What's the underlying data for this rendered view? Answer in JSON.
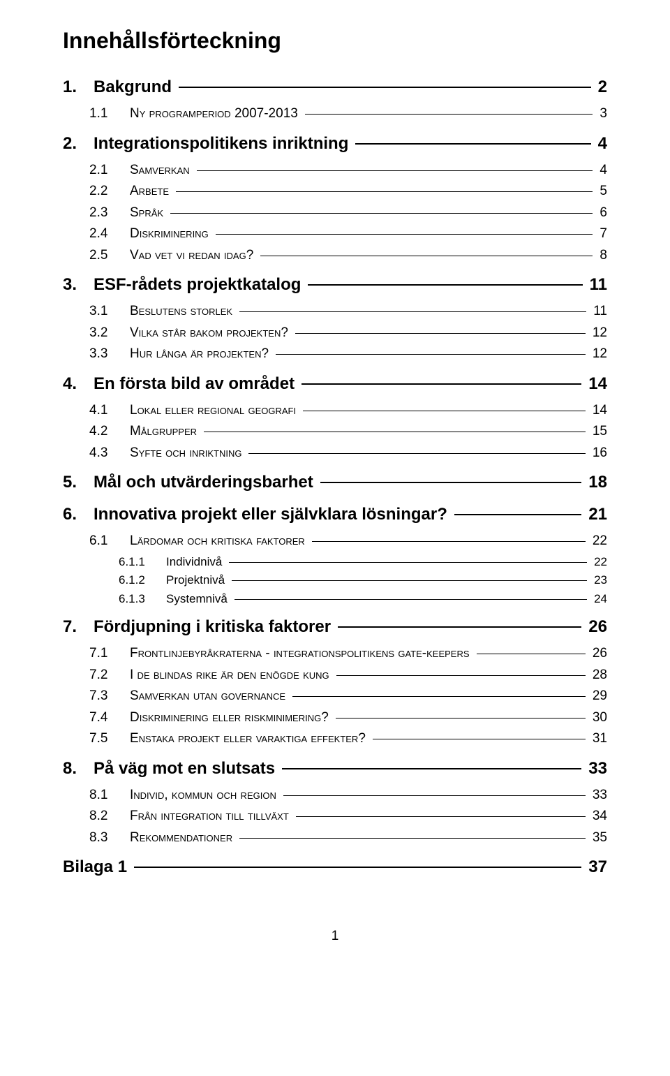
{
  "title": "Innehållsförteckning",
  "entries": [
    {
      "level": 1,
      "num": "1.",
      "label": "Bakgrund",
      "page": "2"
    },
    {
      "level": 2,
      "num": "1.1",
      "label": "Ny programperiod 2007-2013",
      "page": "3"
    },
    {
      "level": 1,
      "num": "2.",
      "label": "Integrationspolitikens inriktning",
      "page": "4"
    },
    {
      "level": 2,
      "num": "2.1",
      "label": "Samverkan",
      "page": "4"
    },
    {
      "level": 2,
      "num": "2.2",
      "label": "Arbete",
      "page": "5"
    },
    {
      "level": 2,
      "num": "2.3",
      "label": "Språk",
      "page": "6"
    },
    {
      "level": 2,
      "num": "2.4",
      "label": "Diskriminering",
      "page": "7"
    },
    {
      "level": 2,
      "num": "2.5",
      "label": "Vad vet vi redan idag?",
      "page": "8"
    },
    {
      "level": 1,
      "num": "3.",
      "label": "ESF-rådets projektkatalog",
      "page": "11"
    },
    {
      "level": 2,
      "num": "3.1",
      "label": "Beslutens storlek",
      "page": "11"
    },
    {
      "level": 2,
      "num": "3.2",
      "label": "Vilka står bakom projekten?",
      "page": "12"
    },
    {
      "level": 2,
      "num": "3.3",
      "label": "Hur långa är projekten?",
      "page": "12"
    },
    {
      "level": 1,
      "num": "4.",
      "label": "En första bild av området",
      "page": "14"
    },
    {
      "level": 2,
      "num": "4.1",
      "label": "Lokal eller regional geografi",
      "page": "14"
    },
    {
      "level": 2,
      "num": "4.2",
      "label": "Målgrupper",
      "page": "15"
    },
    {
      "level": 2,
      "num": "4.3",
      "label": "Syfte och inriktning",
      "page": "16"
    },
    {
      "level": 1,
      "num": "5.",
      "label": "Mål och utvärderingsbarhet",
      "page": "18"
    },
    {
      "level": 1,
      "num": "6.",
      "label": "Innovativa projekt eller självklara lösningar?",
      "page": "21"
    },
    {
      "level": 2,
      "num": "6.1",
      "label": "Lärdomar och kritiska faktorer",
      "page": "22"
    },
    {
      "level": 3,
      "num": "6.1.1",
      "label": "Individnivå",
      "page": "22"
    },
    {
      "level": 3,
      "num": "6.1.2",
      "label": "Projektnivå",
      "page": "23"
    },
    {
      "level": 3,
      "num": "6.1.3",
      "label": "Systemnivå",
      "page": "24"
    },
    {
      "level": 1,
      "num": "7.",
      "label": "Fördjupning i kritiska faktorer",
      "page": "26"
    },
    {
      "level": 2,
      "num": "7.1",
      "label": "Frontlinjebyråkraterna - integrationspolitikens gate-keepers",
      "page": "26"
    },
    {
      "level": 2,
      "num": "7.2",
      "label": "I de blindas rike är den enögde kung",
      "page": "28"
    },
    {
      "level": 2,
      "num": "7.3",
      "label": "Samverkan utan governance",
      "page": "29"
    },
    {
      "level": 2,
      "num": "7.4",
      "label": "Diskriminering eller riskminimering?",
      "page": "30"
    },
    {
      "level": 2,
      "num": "7.5",
      "label": "Enstaka projekt eller varaktiga effekter?",
      "page": "31"
    },
    {
      "level": 1,
      "num": "8.",
      "label": "På väg mot en slutsats",
      "page": "33"
    },
    {
      "level": 2,
      "num": "8.1",
      "label": "Individ, kommun och region",
      "page": "33"
    },
    {
      "level": 2,
      "num": "8.2",
      "label": "Från integration till tillväxt",
      "page": "34"
    },
    {
      "level": 2,
      "num": "8.3",
      "label": "Rekommendationer",
      "page": "35"
    },
    {
      "level": 1,
      "num": "",
      "label": "Bilaga 1",
      "page": "37"
    }
  ],
  "pageNumber": "1"
}
